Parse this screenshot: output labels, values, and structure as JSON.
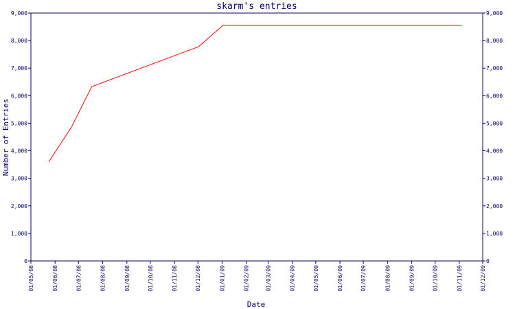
{
  "chart_data": {
    "type": "line",
    "title": "skarm's entries",
    "x_label": "Date",
    "y_label": "Number of Entries",
    "x": [
      "2008-05-24",
      "2008-06-22",
      "2008-07-18",
      "2008-12-02",
      "2009-01-02",
      "2009-11-04"
    ],
    "series": [
      {
        "name": "entries",
        "color": "#ff0000",
        "values": [
          3600,
          4860,
          6330,
          7780,
          8550,
          8550
        ]
      }
    ],
    "xlim": [
      "2008-05-01",
      "2009-12-01"
    ],
    "xticks": [
      {
        "value": "2008-05-01",
        "label": "01/05/08"
      },
      {
        "value": "2008-06-01",
        "label": "01/06/08"
      },
      {
        "value": "2008-07-01",
        "label": "01/07/08"
      },
      {
        "value": "2008-08-01",
        "label": "01/08/08"
      },
      {
        "value": "2008-09-01",
        "label": "01/09/08"
      },
      {
        "value": "2008-10-01",
        "label": "01/10/08"
      },
      {
        "value": "2008-11-01",
        "label": "01/11/08"
      },
      {
        "value": "2008-12-01",
        "label": "01/12/08"
      },
      {
        "value": "2009-01-01",
        "label": "01/01/09"
      },
      {
        "value": "2009-02-01",
        "label": "01/02/09"
      },
      {
        "value": "2009-03-01",
        "label": "01/03/09"
      },
      {
        "value": "2009-04-01",
        "label": "01/04/09"
      },
      {
        "value": "2009-05-01",
        "label": "01/05/09"
      },
      {
        "value": "2009-06-01",
        "label": "01/06/09"
      },
      {
        "value": "2009-07-01",
        "label": "01/07/09"
      },
      {
        "value": "2009-08-01",
        "label": "01/08/09"
      },
      {
        "value": "2009-09-01",
        "label": "01/09/09"
      },
      {
        "value": "2009-10-01",
        "label": "01/10/09"
      },
      {
        "value": "2009-11-01",
        "label": "01/11/09"
      },
      {
        "value": "2009-12-01",
        "label": "01/12/09"
      }
    ],
    "ylim": [
      0,
      9000
    ],
    "yticks": [
      0,
      {
        "value": 1000,
        "label": "1,000"
      },
      {
        "value": 2000,
        "label": "2,000"
      },
      {
        "value": 3000,
        "label": "3,000"
      },
      {
        "value": 4000,
        "label": "4,000"
      },
      {
        "value": 5000,
        "label": "5,000"
      },
      {
        "value": 6000,
        "label": "6,000"
      },
      {
        "value": 7000,
        "label": "7,000"
      },
      {
        "value": 8000,
        "label": "8,000"
      },
      {
        "value": 9000,
        "label": "9,000"
      }
    ],
    "grid": false
  }
}
